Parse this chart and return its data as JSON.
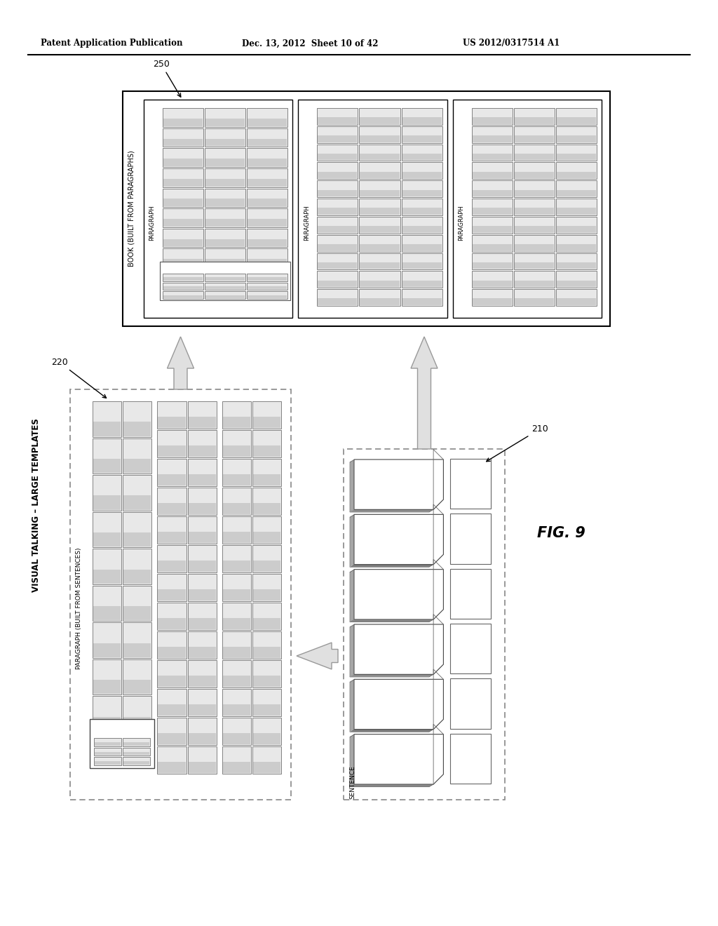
{
  "header_left": "Patent Application Publication",
  "header_mid": "Dec. 13, 2012  Sheet 10 of 42",
  "header_right": "US 2012/0317514 A1",
  "fig_label": "FIG. 9",
  "title_label": "VISUAL TALKING – LARGE TEMPLATES",
  "bg_color": "#ffffff",
  "label_220": "220",
  "label_210": "210",
  "label_250": "250",
  "para_label_220": "PARAGRAPH (BUILT FROM SENTENCES)",
  "para_label_book1": "PARAGRAPH",
  "para_label_book2": "PARAGRAPH",
  "para_label_book3": "PARAGRAPH",
  "book_label": "BOOK (BUILT FROM PARAGRAPHS)",
  "sentence_label": "SENTENCE"
}
